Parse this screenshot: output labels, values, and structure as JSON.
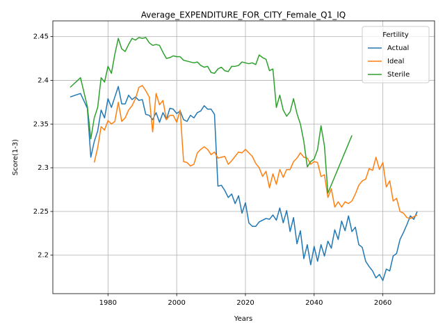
{
  "chart_data": {
    "type": "line",
    "title": "Average_EXPENDITURE_FOR_CITY_Female_Q1_IQ",
    "xlabel": "Years",
    "ylabel": "Score(1-3)",
    "legend_title": "Fertility",
    "legend": "upper right",
    "grid": true,
    "xlim": [
      1963.95,
      2075.05
    ],
    "xticks": [
      1980,
      2000,
      2020,
      2040,
      2060
    ],
    "ylim": [
      2.156,
      2.468
    ],
    "yticks": [
      2.2,
      2.25,
      2.3,
      2.35,
      2.4,
      2.45
    ],
    "series": [
      {
        "name": "Actual",
        "color": "#1f77b4",
        "x": [
          1969,
          1972,
          1974,
          1975,
          1976,
          1977,
          1978,
          1979,
          1980,
          1981,
          1982,
          1983,
          1984,
          1985,
          1986,
          1987,
          1988,
          1989,
          1990,
          1991,
          1992,
          1993,
          1994,
          1995,
          1996,
          1997,
          1998,
          1999,
          2000,
          2001,
          2002,
          2003,
          2004,
          2005,
          2006,
          2007,
          2008,
          2009,
          2010,
          2011,
          2012,
          2013,
          2014,
          2015,
          2016,
          2017,
          2018,
          2019,
          2020,
          2021,
          2022,
          2023,
          2024,
          2025,
          2026,
          2027,
          2028,
          2029,
          2030,
          2031,
          2032,
          2033,
          2034,
          2035,
          2036,
          2037,
          2038,
          2039,
          2040,
          2041,
          2042,
          2043,
          2044,
          2045,
          2046,
          2047,
          2048,
          2049,
          2050,
          2051,
          2052,
          2053,
          2054,
          2055,
          2056,
          2057,
          2058,
          2059,
          2060,
          2061,
          2062,
          2063,
          2064,
          2065,
          2066,
          2067,
          2068,
          2069,
          2070
        ],
        "values": [
          2.381,
          2.385,
          2.368,
          2.312,
          2.33,
          2.342,
          2.366,
          2.357,
          2.379,
          2.369,
          2.381,
          2.393,
          2.373,
          2.373,
          2.383,
          2.378,
          2.381,
          2.377,
          2.378,
          2.361,
          2.36,
          2.355,
          2.363,
          2.352,
          2.363,
          2.355,
          2.368,
          2.367,
          2.362,
          2.365,
          2.355,
          2.353,
          2.36,
          2.357,
          2.363,
          2.365,
          2.371,
          2.367,
          2.367,
          2.361,
          2.279,
          2.28,
          2.274,
          2.266,
          2.27,
          2.259,
          2.268,
          2.248,
          2.26,
          2.237,
          2.233,
          2.233,
          2.238,
          2.24,
          2.242,
          2.241,
          2.246,
          2.24,
          2.254,
          2.237,
          2.251,
          2.227,
          2.243,
          2.213,
          2.228,
          2.196,
          2.212,
          2.189,
          2.21,
          2.193,
          2.212,
          2.199,
          2.216,
          2.208,
          2.229,
          2.218,
          2.239,
          2.228,
          2.245,
          2.227,
          2.232,
          2.212,
          2.209,
          2.193,
          2.187,
          2.182,
          2.174,
          2.178,
          2.171,
          2.184,
          2.182,
          2.199,
          2.202,
          2.218,
          2.226,
          2.235,
          2.245,
          2.241,
          2.25
        ]
      },
      {
        "name": "Ideal",
        "color": "#ff7f0e",
        "x": [
          1976,
          1977,
          1978,
          1979,
          1980,
          1981,
          1982,
          1983,
          1984,
          1985,
          1986,
          1987,
          1988,
          1989,
          1990,
          1991,
          1992,
          1993,
          1994,
          1995,
          1996,
          1997,
          1998,
          1999,
          2000,
          2001,
          2002,
          2003,
          2004,
          2005,
          2006,
          2007,
          2008,
          2009,
          2010,
          2011,
          2012,
          2013,
          2014,
          2015,
          2016,
          2017,
          2018,
          2019,
          2020,
          2021,
          2022,
          2023,
          2024,
          2025,
          2026,
          2027,
          2028,
          2029,
          2030,
          2031,
          2032,
          2033,
          2034,
          2035,
          2036,
          2037,
          2038,
          2039,
          2040,
          2041,
          2042,
          2043,
          2044,
          2045,
          2046,
          2047,
          2048,
          2049,
          2050,
          2051,
          2052,
          2053,
          2054,
          2055,
          2056,
          2057,
          2058,
          2059,
          2060,
          2061,
          2062,
          2063,
          2064,
          2065,
          2066,
          2067,
          2068,
          2069,
          2070
        ],
        "values": [
          2.306,
          2.323,
          2.347,
          2.343,
          2.354,
          2.35,
          2.353,
          2.375,
          2.353,
          2.357,
          2.366,
          2.371,
          2.379,
          2.392,
          2.394,
          2.388,
          2.381,
          2.341,
          2.385,
          2.372,
          2.377,
          2.355,
          2.36,
          2.36,
          2.352,
          2.366,
          2.307,
          2.306,
          2.302,
          2.304,
          2.317,
          2.321,
          2.324,
          2.321,
          2.315,
          2.318,
          2.311,
          2.312,
          2.313,
          2.304,
          2.308,
          2.313,
          2.318,
          2.317,
          2.321,
          2.317,
          2.313,
          2.305,
          2.3,
          2.29,
          2.296,
          2.277,
          2.293,
          2.281,
          2.298,
          2.289,
          2.298,
          2.298,
          2.307,
          2.311,
          2.317,
          2.312,
          2.311,
          2.304,
          2.307,
          2.306,
          2.29,
          2.292,
          2.266,
          2.276,
          2.255,
          2.261,
          2.255,
          2.261,
          2.259,
          2.262,
          2.27,
          2.28,
          2.285,
          2.287,
          2.299,
          2.297,
          2.312,
          2.298,
          2.306,
          2.278,
          2.285,
          2.262,
          2.265,
          2.25,
          2.248,
          2.243,
          2.242,
          2.244,
          2.246
        ]
      },
      {
        "name": "Sterile",
        "color": "#2ca02c",
        "x": [
          1969,
          1972,
          1974,
          1975,
          1976,
          1977,
          1978,
          1979,
          1980,
          1981,
          1982,
          1983,
          1984,
          1985,
          1986,
          1987,
          1988,
          1989,
          1990,
          1991,
          1992,
          1993,
          1994,
          1995,
          1996,
          1997,
          1998,
          1999,
          2000,
          2001,
          2002,
          2003,
          2004,
          2005,
          2006,
          2007,
          2008,
          2009,
          2010,
          2011,
          2012,
          2013,
          2014,
          2015,
          2016,
          2017,
          2018,
          2019,
          2020,
          2021,
          2022,
          2023,
          2024,
          2025,
          2026,
          2027,
          2028,
          2029,
          2030,
          2031,
          2032,
          2033,
          2034,
          2035,
          2036,
          2037,
          2038,
          2039,
          2040,
          2041,
          2042,
          2043,
          2044,
          2051
        ],
        "values": [
          2.392,
          2.403,
          2.37,
          2.333,
          2.357,
          2.369,
          2.403,
          2.398,
          2.416,
          2.408,
          2.43,
          2.448,
          2.436,
          2.433,
          2.441,
          2.448,
          2.446,
          2.449,
          2.448,
          2.449,
          2.443,
          2.44,
          2.441,
          2.44,
          2.432,
          2.425,
          2.426,
          2.428,
          2.427,
          2.427,
          2.423,
          2.422,
          2.421,
          2.42,
          2.421,
          2.417,
          2.415,
          2.416,
          2.409,
          2.408,
          2.413,
          2.415,
          2.411,
          2.41,
          2.416,
          2.416,
          2.417,
          2.421,
          2.42,
          2.419,
          2.42,
          2.418,
          2.429,
          2.426,
          2.424,
          2.411,
          2.413,
          2.369,
          2.383,
          2.366,
          2.359,
          2.364,
          2.379,
          2.362,
          2.35,
          2.33,
          2.301,
          2.307,
          2.31,
          2.321,
          2.348,
          2.325,
          2.271,
          2.337
        ]
      }
    ]
  }
}
